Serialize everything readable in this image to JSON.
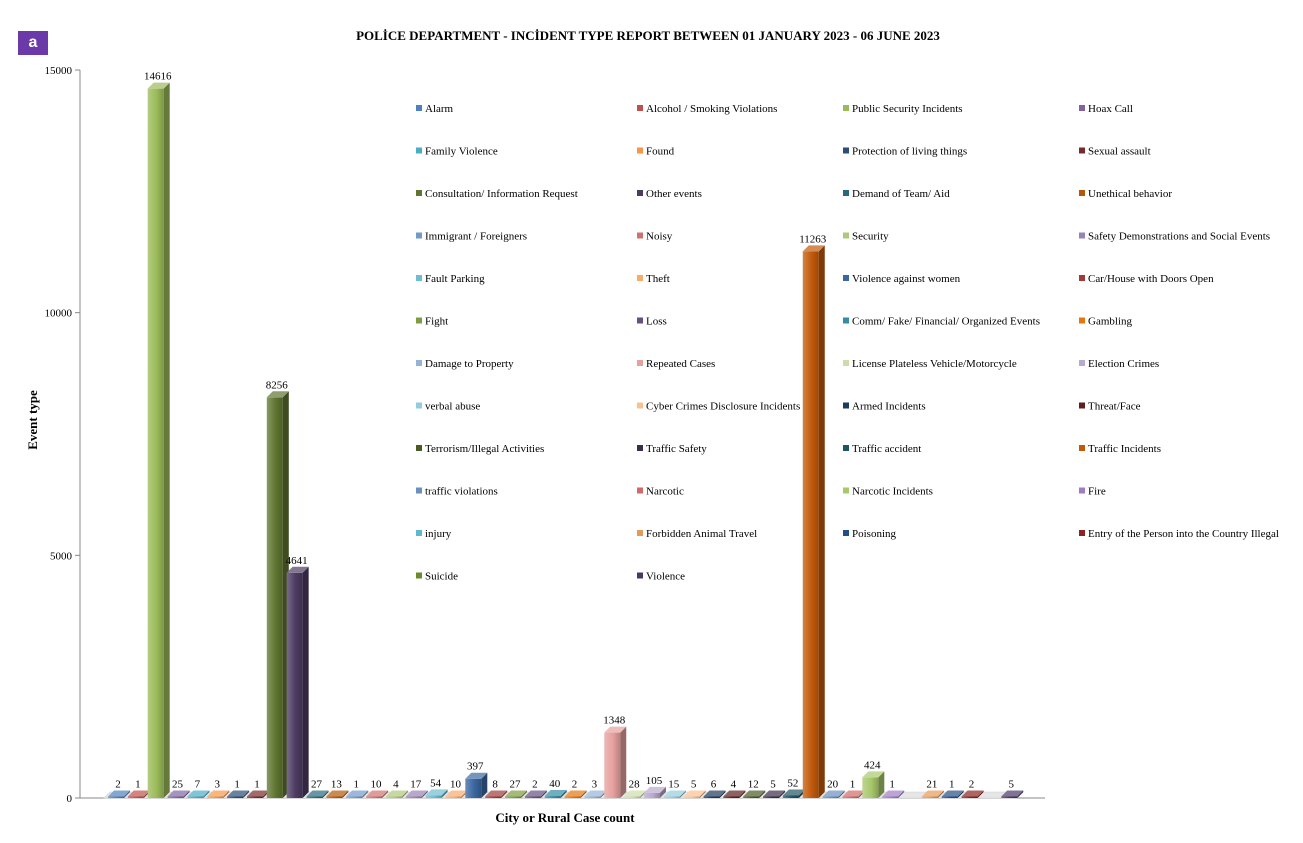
{
  "badge": "a",
  "chart_data": {
    "type": "bar",
    "title": "POLİCE DEPARTMENT - INCİDENT TYPE REPORT BETWEEN 01 JANUARY 2023 - 06 JUNE 2023",
    "xlabel": "City or Rural Case count",
    "ylabel": "Event type",
    "ylim": [
      0,
      15000
    ],
    "yticks": [
      0,
      5000,
      10000,
      15000
    ],
    "grid": false,
    "legend_position": "top-right",
    "series": [
      {
        "name": "Alarm",
        "value": 2,
        "color": "#4f81bd"
      },
      {
        "name": "Alcohol / Smoking Violations",
        "value": 1,
        "color": "#c0504d"
      },
      {
        "name": "Public Security Incidents",
        "value": 14616,
        "color": "#9bbb59"
      },
      {
        "name": "Hoax Call",
        "value": 25,
        "color": "#8064a2"
      },
      {
        "name": "Family Violence",
        "value": 7,
        "color": "#4bacc6"
      },
      {
        "name": "Found",
        "value": 3,
        "color": "#f79646"
      },
      {
        "name": "Protection of living things",
        "value": 1,
        "color": "#2c4d75"
      },
      {
        "name": "Sexual assault",
        "value": 1,
        "color": "#772c2a"
      },
      {
        "name": "Consultation/ Information Request",
        "value": 8256,
        "color": "#5f7530"
      },
      {
        "name": "Other events",
        "value": 4641,
        "color": "#4d3b62"
      },
      {
        "name": "Demand of Team/  Aid",
        "value": 27,
        "color": "#276a7c"
      },
      {
        "name": "Unethical behavior",
        "value": 13,
        "color": "#b65708"
      },
      {
        "name": "Immigrant / Foreigners",
        "value": 1,
        "color": "#729aca"
      },
      {
        "name": "Noisy",
        "value": 10,
        "color": "#d1716f"
      },
      {
        "name": "Security",
        "value": 4,
        "color": "#afc97a"
      },
      {
        "name": "Safety Demonstrations and Social Events",
        "value": 17,
        "color": "#9983b5"
      },
      {
        "name": "Fault Parking",
        "value": 54,
        "color": "#6fbdd1"
      },
      {
        "name": "Theft",
        "value": 10,
        "color": "#f9ab6b"
      },
      {
        "name": "Violence against women",
        "value": 397,
        "color": "#3a67a0"
      },
      {
        "name": "Car/House with Doors Open",
        "value": 8,
        "color": "#9f3b38"
      },
      {
        "name": "Fight",
        "value": 27,
        "color": "#7e9c40"
      },
      {
        "name": "Loss",
        "value": 2,
        "color": "#664f82"
      },
      {
        "name": "Comm/ Fake/ Financial/ Organized Events",
        "value": 40,
        "color": "#338da5"
      },
      {
        "name": "Gambling",
        "value": 2,
        "color": "#e4760c"
      },
      {
        "name": "Damage to Property",
        "value": 3,
        "color": "#95b3d7"
      },
      {
        "name": "Repeated Cases",
        "value": 1348,
        "color": "#e6a09e"
      },
      {
        "name": "License Plateless Vehicle/Motorcycle",
        "value": 28,
        "color": "#cddcab"
      },
      {
        "name": "Election Crimes",
        "value": 105,
        "color": "#b9a9cc"
      },
      {
        "name": "verbal abuse",
        "value": 15,
        "color": "#93cddd"
      },
      {
        "name": "Cyber Crimes Disclosure Incidents",
        "value": 5,
        "color": "#fac090"
      },
      {
        "name": "Armed Incidents",
        "value": 6,
        "color": "#1f3a5c"
      },
      {
        "name": "Threat/Face",
        "value": 4,
        "color": "#5c1f1e"
      },
      {
        "name": "Terrorism/Illegal Activities",
        "value": 12,
        "color": "#4a5a25"
      },
      {
        "name": "Traffic Safety",
        "value": 5,
        "color": "#3b2d4c"
      },
      {
        "name": "Traffic accident",
        "value": 52,
        "color": "#1e5563"
      },
      {
        "name": "Traffic Incidents",
        "value": 11263,
        "color": "#c35a0a"
      },
      {
        "name": "traffic violations",
        "value": 20,
        "color": "#6a8fc0"
      },
      {
        "name": "Narcotic",
        "value": 1,
        "color": "#cf6a67"
      },
      {
        "name": "Narcotic Incidents",
        "value": 424,
        "color": "#a8c86a"
      },
      {
        "name": "Fire",
        "value": 1,
        "color": "#a07cc4"
      },
      {
        "name": "injury",
        "value": null,
        "color": "#5fb8cf"
      },
      {
        "name": "Forbidden Animal Travel",
        "value": 21,
        "color": "#e59a58"
      },
      {
        "name": "Poisoning",
        "value": 1,
        "color": "#244f86"
      },
      {
        "name": "Entry of the Person into the Country Illegal",
        "value": 2,
        "color": "#8a2422"
      },
      {
        "name": "Suicide",
        "value": null,
        "color": "#6b8a2a"
      },
      {
        "name": "Violence",
        "value": 5,
        "color": "#4a3766"
      }
    ]
  }
}
